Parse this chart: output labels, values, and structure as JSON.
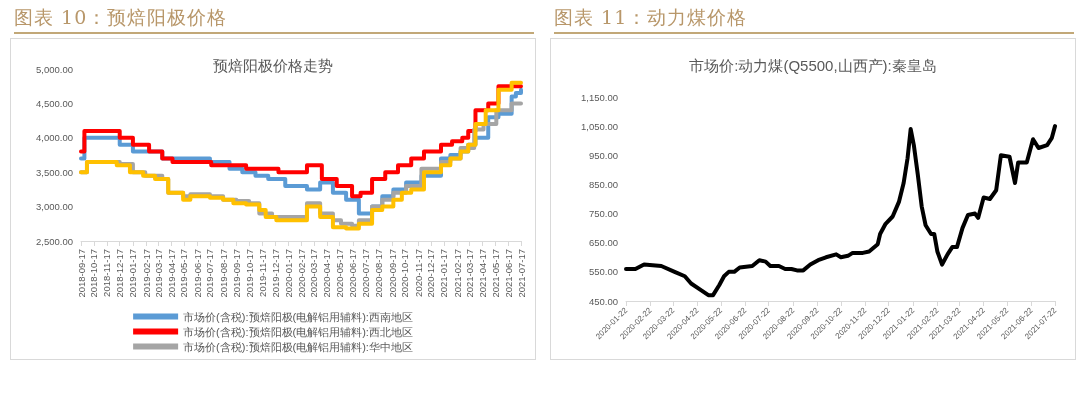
{
  "chart_data": [
    {
      "type": "step",
      "title": "图表 10：预焙阳极价格",
      "subtitle": "预焙阳极价格走势",
      "marker": "none",
      "legend": "bottom",
      "xlim": [
        "2018-09-17",
        "2021-07-17"
      ],
      "xticks": [
        "2018-09-17",
        "2018-10-17",
        "2018-11-17",
        "2018-12-17",
        "2019-01-17",
        "2019-02-17",
        "2019-03-17",
        "2019-04-17",
        "2019-05-17",
        "2019-06-17",
        "2019-07-17",
        "2019-08-17",
        "2019-09-17",
        "2019-10-17",
        "2019-11-17",
        "2019-12-17",
        "2020-01-17",
        "2020-02-17",
        "2020-03-17",
        "2020-04-17",
        "2020-05-17",
        "2020-06-17",
        "2020-07-17",
        "2020-08-17",
        "2020-09-17",
        "2020-10-17",
        "2020-11-17",
        "2020-12-17",
        "2021-01-17",
        "2021-02-17",
        "2021-03-17",
        "2021-04-17",
        "2021-05-17",
        "2021-06-17",
        "2021-07-17"
      ],
      "ylim": [
        2500,
        5000
      ],
      "yticks": [
        {
          "value": 2500,
          "label": "2,500.00"
        },
        {
          "value": 3000,
          "label": "3,000.00"
        },
        {
          "value": 3500,
          "label": "3,500.00"
        },
        {
          "value": 4000,
          "label": "4,000.00"
        },
        {
          "value": 4500,
          "label": "4,500.00"
        },
        {
          "value": 5000,
          "label": "5,000.00"
        }
      ],
      "series": [
        {
          "name": "市场价(含税):预焙阳极(电解铝用辅料):西南地区",
          "color": "#5b9bd5",
          "x": [
            "2018-09-17",
            "2018-09-25",
            "2018-12-17",
            "2019-01-17",
            "2019-02-24",
            "2019-03-27",
            "2019-07-17",
            "2019-09-01",
            "2019-10-01",
            "2019-11-01",
            "2019-12-01",
            "2020-01-10",
            "2020-03-01",
            "2020-04-01",
            "2020-05-01",
            "2020-06-01",
            "2020-07-01",
            "2020-08-01",
            "2020-08-25",
            "2020-09-20",
            "2020-10-20",
            "2020-11-25",
            "2021-01-10",
            "2021-02-01",
            "2021-02-25",
            "2021-03-15",
            "2021-04-01",
            "2021-05-01",
            "2021-05-25",
            "2021-06-25",
            "2021-07-05",
            "2021-07-17"
          ],
          "values": [
            3700,
            4000,
            3900,
            3800,
            3800,
            3700,
            3650,
            3550,
            3500,
            3450,
            3400,
            3300,
            3250,
            3350,
            3200,
            3100,
            2900,
            3000,
            3150,
            3250,
            3350,
            3450,
            3700,
            3750,
            3800,
            3900,
            4000,
            4300,
            4350,
            4600,
            4650,
            4700
          ]
        },
        {
          "name": "市场价(含税):预焙阳极(电解铝用辅料):西北地区",
          "color": "#ff0000",
          "x": [
            "2018-09-17",
            "2018-09-25",
            "2018-12-17",
            "2019-01-17",
            "2019-02-24",
            "2019-03-27",
            "2019-04-20",
            "2019-07-20",
            "2019-10-10",
            "2019-12-25",
            "2020-03-01",
            "2020-04-05",
            "2020-05-10",
            "2020-06-15",
            "2020-07-05",
            "2020-08-01",
            "2020-09-01",
            "2020-10-01",
            "2020-11-01",
            "2020-12-01",
            "2021-01-10",
            "2021-02-05",
            "2021-03-01",
            "2021-03-15",
            "2021-04-01",
            "2021-05-01",
            "2021-05-25",
            "2021-07-17"
          ],
          "values": [
            3800,
            4100,
            4000,
            3900,
            3800,
            3700,
            3650,
            3600,
            3550,
            3500,
            3600,
            3400,
            3300,
            3150,
            3200,
            3400,
            3500,
            3600,
            3700,
            3800,
            3900,
            3950,
            4000,
            4100,
            4400,
            4500,
            4750,
            4750
          ]
        },
        {
          "name": "市场价(含税):预焙阳极(电解铝用辅料):华中地区",
          "color": "#a5a5a5",
          "x": [
            "2018-09-17",
            "2018-10-01",
            "2018-12-17",
            "2019-01-17",
            "2019-02-15",
            "2019-03-27",
            "2019-04-10",
            "2019-05-15",
            "2019-06-01",
            "2019-07-17",
            "2019-08-17",
            "2019-09-17",
            "2019-10-17",
            "2019-11-10",
            "2019-12-10",
            "2020-03-01",
            "2020-04-01",
            "2020-05-01",
            "2020-05-20",
            "2020-06-15",
            "2020-07-01",
            "2020-08-01",
            "2020-08-25",
            "2020-09-20",
            "2020-10-20",
            "2020-11-25",
            "2021-01-10",
            "2021-02-01",
            "2021-02-25",
            "2021-03-29",
            "2021-04-20",
            "2021-05-20",
            "2021-06-25",
            "2021-07-17"
          ],
          "values": [
            3500,
            3650,
            3620,
            3500,
            3450,
            3400,
            3200,
            3150,
            3180,
            3150,
            3100,
            3080,
            3050,
            2900,
            2850,
            3050,
            2900,
            2800,
            2750,
            2720,
            2800,
            3000,
            3100,
            3200,
            3300,
            3550,
            3650,
            3700,
            3850,
            4120,
            4200,
            4400,
            4500,
            4500
          ]
        },
        {
          "color": "#ffc000",
          "x": [
            "2018-09-17",
            "2018-10-01",
            "2018-12-10",
            "2019-01-10",
            "2019-02-10",
            "2019-03-10",
            "2019-04-10",
            "2019-05-15",
            "2019-06-01",
            "2019-07-17",
            "2019-08-17",
            "2019-09-10",
            "2019-10-10",
            "2019-11-10",
            "2019-11-25",
            "2019-12-20",
            "2020-03-01",
            "2020-04-01",
            "2020-05-01",
            "2020-06-01",
            "2020-07-01",
            "2020-08-01",
            "2020-08-25",
            "2020-09-20",
            "2020-10-10",
            "2020-11-01",
            "2020-12-01",
            "2021-01-10",
            "2021-02-01",
            "2021-02-25",
            "2021-03-15",
            "2021-04-01",
            "2021-04-25",
            "2021-05-25",
            "2021-06-25",
            "2021-07-17"
          ],
          "values": [
            3500,
            3650,
            3600,
            3500,
            3450,
            3400,
            3200,
            3100,
            3150,
            3130,
            3100,
            3050,
            3030,
            2950,
            2850,
            2800,
            3000,
            2850,
            2700,
            2680,
            2750,
            2950,
            3000,
            3100,
            3200,
            3250,
            3500,
            3600,
            3700,
            3800,
            3900,
            4200,
            4400,
            4700,
            4800,
            4800
          ]
        }
      ]
    },
    {
      "type": "line",
      "title": "图表 11：动力煤价格",
      "subtitle": "市场价:动力煤(Q5500,山西产):秦皇岛",
      "marker": "none",
      "xlim": [
        "2020-01-22",
        "2021-07-22"
      ],
      "xticks": [
        "2020-01-22",
        "2020-02-22",
        "2020-03-22",
        "2020-04-22",
        "2020-05-22",
        "2020-06-22",
        "2020-07-22",
        "2020-08-22",
        "2020-09-22",
        "2020-10-22",
        "2020-11-22",
        "2020-12-22",
        "2021-01-22",
        "2021-02-22",
        "2021-03-22",
        "2021-04-22",
        "2021-05-22",
        "2021-06-22",
        "2021-07-22"
      ],
      "ylim": [
        450,
        1150
      ],
      "yticks": [
        {
          "value": 450,
          "label": "450.00"
        },
        {
          "value": 550,
          "label": "550.00"
        },
        {
          "value": 650,
          "label": "650.00"
        },
        {
          "value": 750,
          "label": "750.00"
        },
        {
          "value": 850,
          "label": "850.00"
        },
        {
          "value": 950,
          "label": "950.00"
        },
        {
          "value": 1050,
          "label": "1,050.00"
        },
        {
          "value": 1150,
          "label": "1,150.00"
        }
      ],
      "series": [
        {
          "color": "#000000",
          "x": [
            "2020-01-22",
            "2020-02-03",
            "2020-02-14",
            "2020-03-07",
            "2020-03-24",
            "2020-04-06",
            "2020-04-14",
            "2020-04-28",
            "2020-05-06",
            "2020-05-12",
            "2020-05-20",
            "2020-05-26",
            "2020-06-01",
            "2020-06-08",
            "2020-06-15",
            "2020-07-01",
            "2020-07-10",
            "2020-07-18",
            "2020-07-24",
            "2020-08-04",
            "2020-08-12",
            "2020-08-20",
            "2020-08-27",
            "2020-09-04",
            "2020-09-13",
            "2020-09-23",
            "2020-10-03",
            "2020-10-16",
            "2020-10-22",
            "2020-10-31",
            "2020-11-06",
            "2020-11-19",
            "2020-11-27",
            "2020-12-08",
            "2020-12-11",
            "2020-12-18",
            "2020-12-27",
            "2021-01-04",
            "2021-01-10",
            "2021-01-15",
            "2021-01-19",
            "2021-01-23",
            "2021-01-28",
            "2021-02-02",
            "2021-02-07",
            "2021-02-14",
            "2021-02-18",
            "2021-02-22",
            "2021-02-28",
            "2021-03-07",
            "2021-03-13",
            "2021-03-19",
            "2021-03-26",
            "2021-04-02",
            "2021-04-11",
            "2021-04-15",
            "2021-04-22",
            "2021-04-30",
            "2021-05-08",
            "2021-05-14",
            "2021-05-25",
            "2021-06-01",
            "2021-06-05",
            "2021-06-16",
            "2021-06-24",
            "2021-07-01",
            "2021-07-12",
            "2021-07-18",
            "2021-07-22"
          ],
          "values": [
            560,
            560,
            575,
            570,
            550,
            535,
            510,
            485,
            470,
            470,
            505,
            535,
            550,
            550,
            565,
            570,
            590,
            585,
            570,
            570,
            560,
            560,
            555,
            555,
            575,
            590,
            600,
            610,
            600,
            605,
            615,
            615,
            620,
            645,
            680,
            715,
            740,
            790,
            855,
            940,
            1040,
            985,
            885,
            775,
            710,
            680,
            680,
            620,
            575,
            610,
            635,
            635,
            700,
            745,
            750,
            735,
            805,
            800,
            830,
            950,
            945,
            855,
            925,
            925,
            1005,
            975,
            985,
            1010,
            1050
          ]
        }
      ]
    }
  ]
}
